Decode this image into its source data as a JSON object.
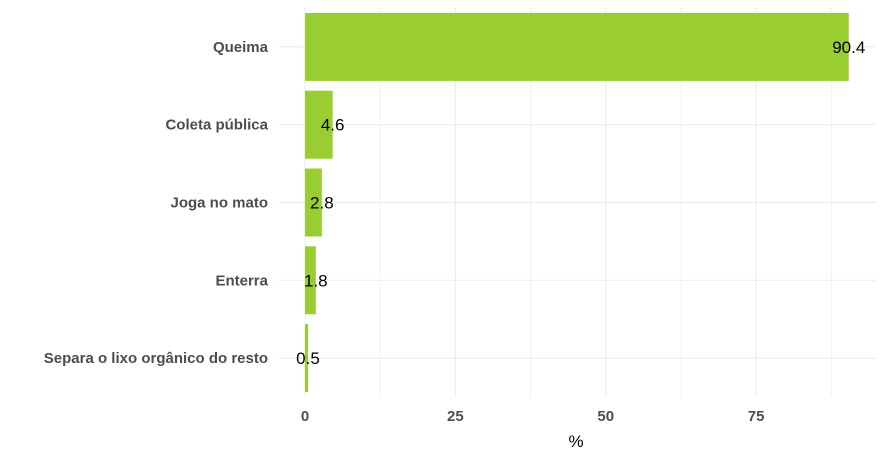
{
  "chart_data": {
    "type": "bar",
    "orientation": "horizontal",
    "categories": [
      "Queima",
      "Coleta pública",
      "Joga no mato",
      "Enterra",
      "Separa o lixo orgânico do resto"
    ],
    "values": [
      90.4,
      4.6,
      2.8,
      1.8,
      0.5
    ],
    "data_labels": [
      "90.4",
      "4.6",
      "2.8",
      "1.8",
      "0.5"
    ],
    "xlabel": "%",
    "ylabel": "",
    "xlim": [
      0,
      91
    ],
    "x_ticks": [
      0,
      25,
      50,
      75
    ],
    "x_tick_labels": [
      "0",
      "25",
      "50",
      "75"
    ],
    "grid": true,
    "legend": "none",
    "bar_color": "#9acd32"
  }
}
